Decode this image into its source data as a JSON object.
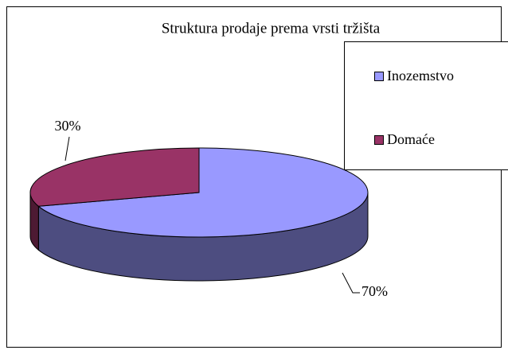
{
  "chart_data": {
    "type": "pie",
    "title": "Struktura prodaje prema vrsti tržišta",
    "categories": [
      "Inozemstvo",
      "Domaće"
    ],
    "values": [
      70,
      30
    ],
    "value_labels": [
      "70%",
      "30%"
    ],
    "colors": [
      "#9999ff",
      "#993366"
    ],
    "legend": "right"
  }
}
